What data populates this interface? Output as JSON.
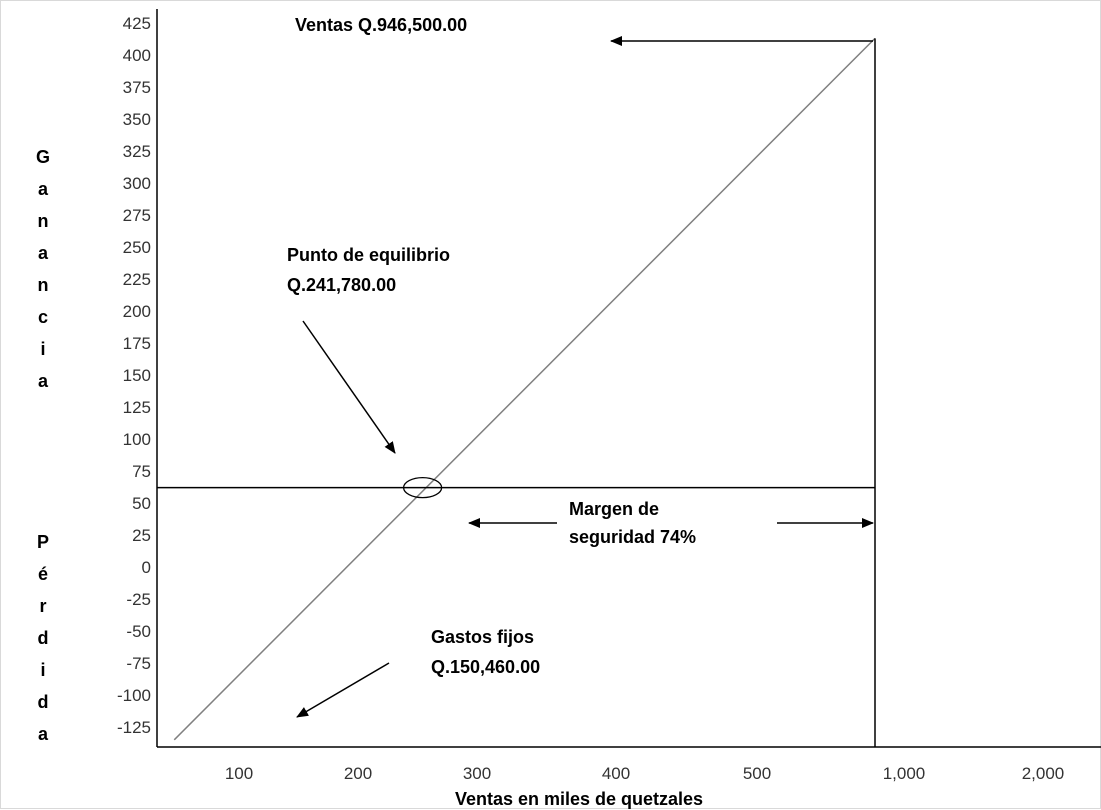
{
  "chart_data": {
    "type": "line",
    "xlabel": "Ventas en miles de quetzales",
    "ylabel_top": "Ganancia",
    "ylabel_bottom": "Pérdida",
    "x_ticks": [
      "100",
      "200",
      "300",
      "400",
      "500",
      "1,000",
      "2,000"
    ],
    "y_ticks": [
      "425",
      "400",
      "375",
      "350",
      "325",
      "300",
      "275",
      "250",
      "225",
      "200",
      "175",
      "150",
      "125",
      "100",
      "75",
      "50",
      "25",
      "0",
      "-25",
      "-50",
      "-75",
      "-100",
      "-125"
    ],
    "series": [
      {
        "x": [
          50,
          946.5
        ],
        "y": [
          -135,
          413
        ]
      }
    ],
    "breakeven_x": 241.78,
    "sales_x": 946.5,
    "grid": false,
    "colors": {
      "line": "#808080",
      "axis": "#000000",
      "tick_text": "#333333"
    },
    "annotations": {
      "sales": "Ventas Q.946,500.00",
      "breakeven_line1": "Punto de equilibrio",
      "breakeven_line2": "Q.241,780.00",
      "margin_line1": "Margen de",
      "margin_line2": "seguridad 74%",
      "fixed_line1": "Gastos fijos",
      "fixed_line2": "Q.150,460.00"
    }
  }
}
